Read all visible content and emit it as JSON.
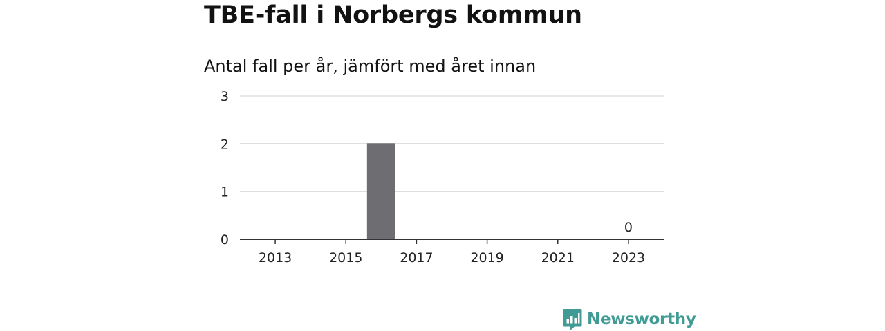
{
  "chart_data": {
    "type": "bar",
    "title": "TBE-fall i Norbergs kommun",
    "subtitle": "Antal fall per år, jämfört med året innan",
    "x": [
      2016,
      2023
    ],
    "values": [
      2,
      0
    ],
    "value_labels": [
      "",
      "0"
    ],
    "x_ticks": [
      "2013",
      "2015",
      "2017",
      "2019",
      "2021",
      "2023"
    ],
    "y_ticks": [
      "0",
      "1",
      "2",
      "3"
    ],
    "xlim": [
      2012,
      2024
    ],
    "ylim": [
      0,
      3
    ],
    "grid": true,
    "bar_color": "#6e6d72"
  },
  "brand": {
    "name": "Newsworthy",
    "color": "#3f9b94",
    "icon": "bar-chart-speech-bubble-icon"
  }
}
